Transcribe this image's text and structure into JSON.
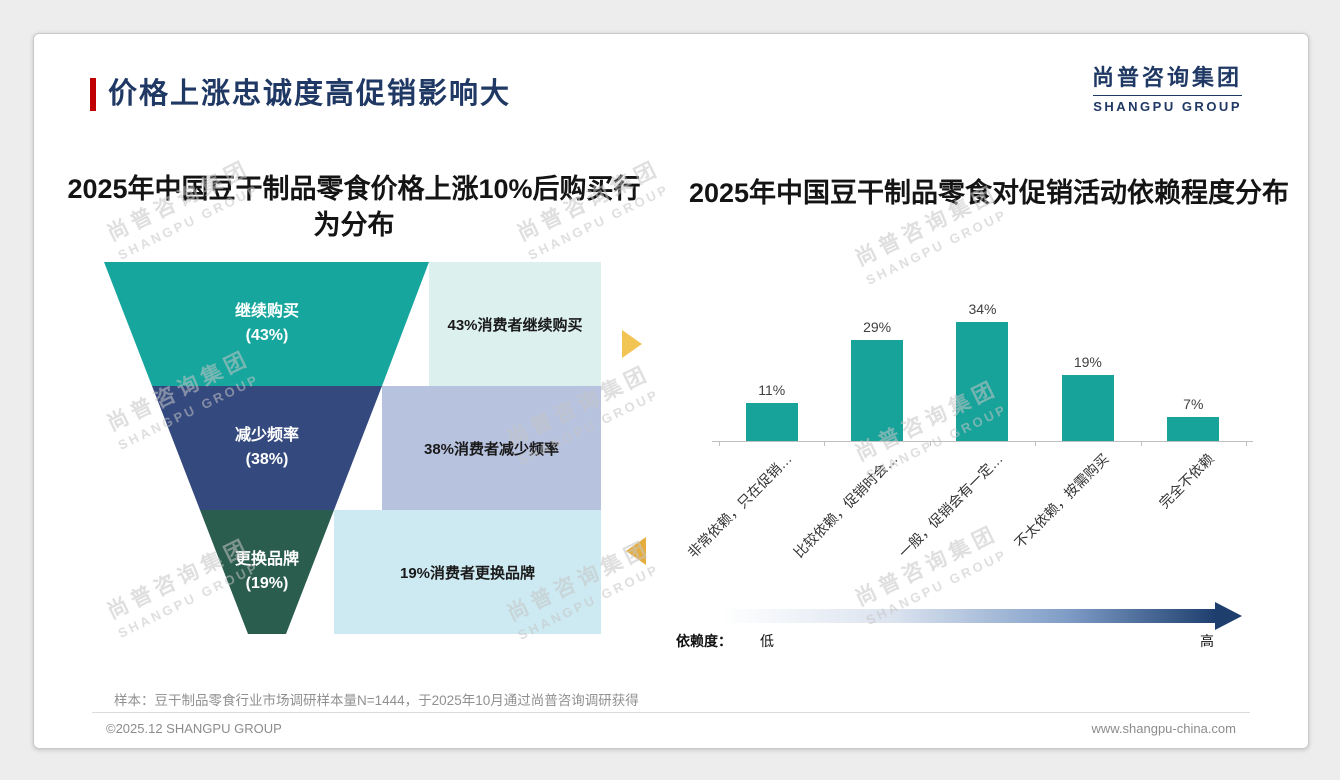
{
  "page": {
    "title": "价格上涨忠诚度高促销影响大",
    "logo_cn": "尚普咨询集团",
    "logo_en": "SHANGPU GROUP",
    "sample_note": "样本：豆干制品零食行业市场调研样本量N=1444，于2025年10月通过尚普咨询调研获得",
    "footer_left": "©2025.12 SHANGPU GROUP",
    "footer_right": "www.shangpu-china.com",
    "watermark_cn": "尚普咨询集团",
    "watermark_en": "SHANGPU GROUP"
  },
  "colors": {
    "title_navy": "#1f3864",
    "accent_red": "#c00000",
    "flow_arrow_right": "#f1c453",
    "flow_arrow_left": "#e5ad3e",
    "dependency_gradient": [
      "#ffffff",
      "#dbe3ef",
      "#7f9dc7",
      "#1e3f6e"
    ]
  },
  "chart_data": [
    {
      "type": "funnel",
      "title": "2025年中国豆干制品零食价格上涨10%后购买行为分布",
      "categories": [
        "继续购买",
        "减少频率",
        "更换品牌"
      ],
      "values": [
        43,
        38,
        19
      ],
      "value_labels": [
        "(43%)",
        "(38%)",
        "(19%)"
      ],
      "annotations": [
        "43%消费者继续购买",
        "38%消费者减少频率",
        "19%消费者更换品牌"
      ],
      "colors": [
        "#16a69d",
        "#34497e",
        "#2b5d4f"
      ],
      "light_colors": [
        "#dcf0ee",
        "#b7c2de",
        "#cdeaf2"
      ]
    },
    {
      "type": "bar",
      "title": "2025年中国豆干制品零食对促销活动依赖程度分布",
      "categories": [
        "非常依赖，只在促销…",
        "比较依赖，促销时会…",
        "一般，促销会有一定…",
        "不太依赖，按需购买",
        "完全不依赖"
      ],
      "values": [
        11,
        29,
        34,
        19,
        7
      ],
      "data_labels": [
        "11%",
        "29%",
        "34%",
        "19%",
        "7%"
      ],
      "bar_color": "#17a29a",
      "xlabel": "",
      "ylabel": "",
      "ylim": [
        0,
        40
      ],
      "grid": false,
      "legend": "none",
      "footer_axis": {
        "label": "依赖度：",
        "low": "低",
        "high": "高"
      }
    }
  ]
}
